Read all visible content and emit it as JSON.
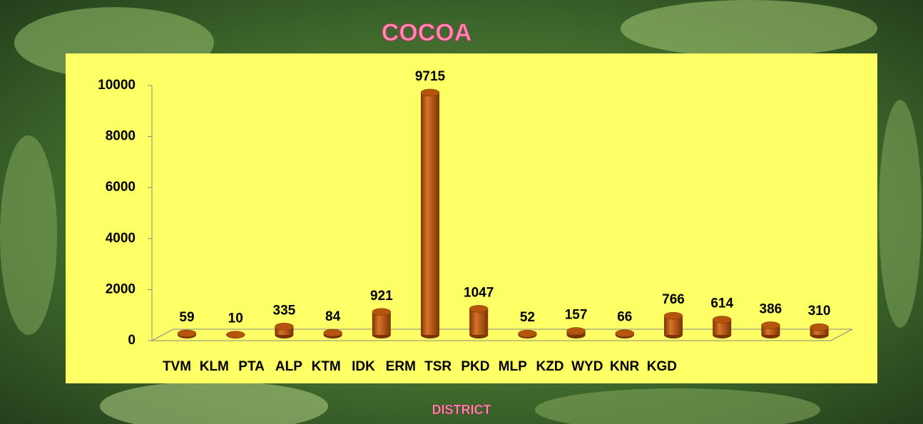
{
  "chart_data": {
    "type": "bar3d",
    "title": "COCOA",
    "x_label": "DISTRICT",
    "categories": [
      "TVM",
      "KLM",
      "PTA",
      "ALP",
      "KTM",
      "IDK",
      "ERM",
      "TSR",
      "PKD",
      "MLP",
      "KZD",
      "WYD",
      "KNR",
      "KGD"
    ],
    "values": [
      59,
      10,
      335,
      84,
      921,
      9715,
      1047,
      52,
      157,
      66,
      766,
      614,
      386,
      310
    ],
    "color": "#b5540c",
    "ylim": [
      0,
      10000
    ],
    "yticks": [
      0,
      2000,
      4000,
      6000,
      8000,
      10000
    ]
  }
}
